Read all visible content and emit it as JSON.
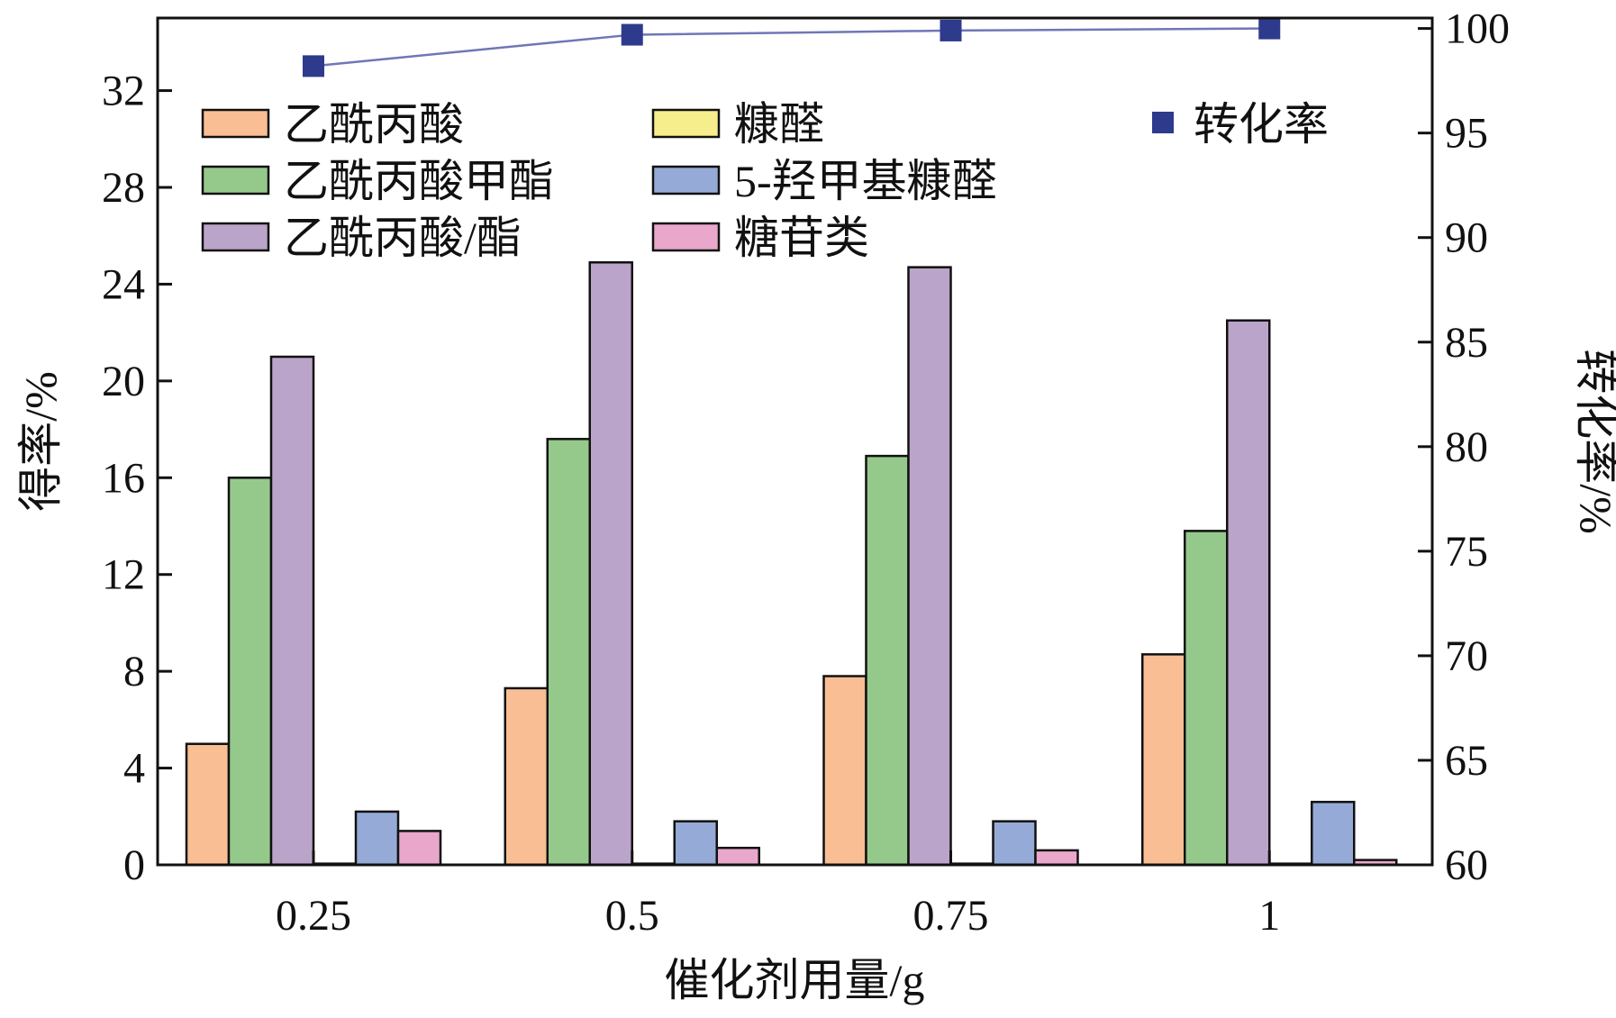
{
  "chart_data": {
    "type": "bar",
    "xlabel": "催化剂用量/g",
    "ylabel": "得率/%",
    "y2label": "转化率/%",
    "categories": [
      "0.25",
      "0.5",
      "0.75",
      "1"
    ],
    "ylim": [
      0,
      35
    ],
    "y2lim": [
      60,
      100.5
    ],
    "yticks": [
      0,
      4,
      8,
      12,
      16,
      20,
      24,
      28,
      32
    ],
    "y2ticks": [
      60,
      65,
      70,
      75,
      80,
      85,
      90,
      95,
      100
    ],
    "grid": false,
    "legend_position": "top",
    "series": [
      {
        "name": "乙酰丙酸",
        "type": "bar",
        "axis": "left",
        "color": "#F9BE93",
        "values": [
          5.0,
          7.3,
          7.8,
          8.7
        ]
      },
      {
        "name": "乙酰丙酸甲酯",
        "type": "bar",
        "axis": "left",
        "color": "#95C98C",
        "values": [
          16.0,
          17.6,
          16.9,
          13.8
        ]
      },
      {
        "name": "乙酰丙酸/酯",
        "type": "bar",
        "axis": "left",
        "color": "#BBA4C9",
        "values": [
          21.0,
          24.9,
          24.7,
          22.5
        ]
      },
      {
        "name": "糠醛",
        "type": "bar",
        "axis": "left",
        "color": "#F6EE8C",
        "values": [
          0.05,
          0.05,
          0.05,
          0.05
        ]
      },
      {
        "name": "5-羟甲基糠醛",
        "type": "bar",
        "axis": "left",
        "color": "#95AAD6",
        "values": [
          2.2,
          1.8,
          1.8,
          2.6
        ]
      },
      {
        "name": "糖苷类",
        "type": "bar",
        "axis": "left",
        "color": "#E9A7CB",
        "values": [
          1.4,
          0.7,
          0.6,
          0.2
        ]
      },
      {
        "name": "转化率",
        "type": "line",
        "axis": "right",
        "color": "#2E3A8C",
        "values": [
          98.2,
          99.7,
          99.9,
          100.0
        ]
      }
    ]
  }
}
